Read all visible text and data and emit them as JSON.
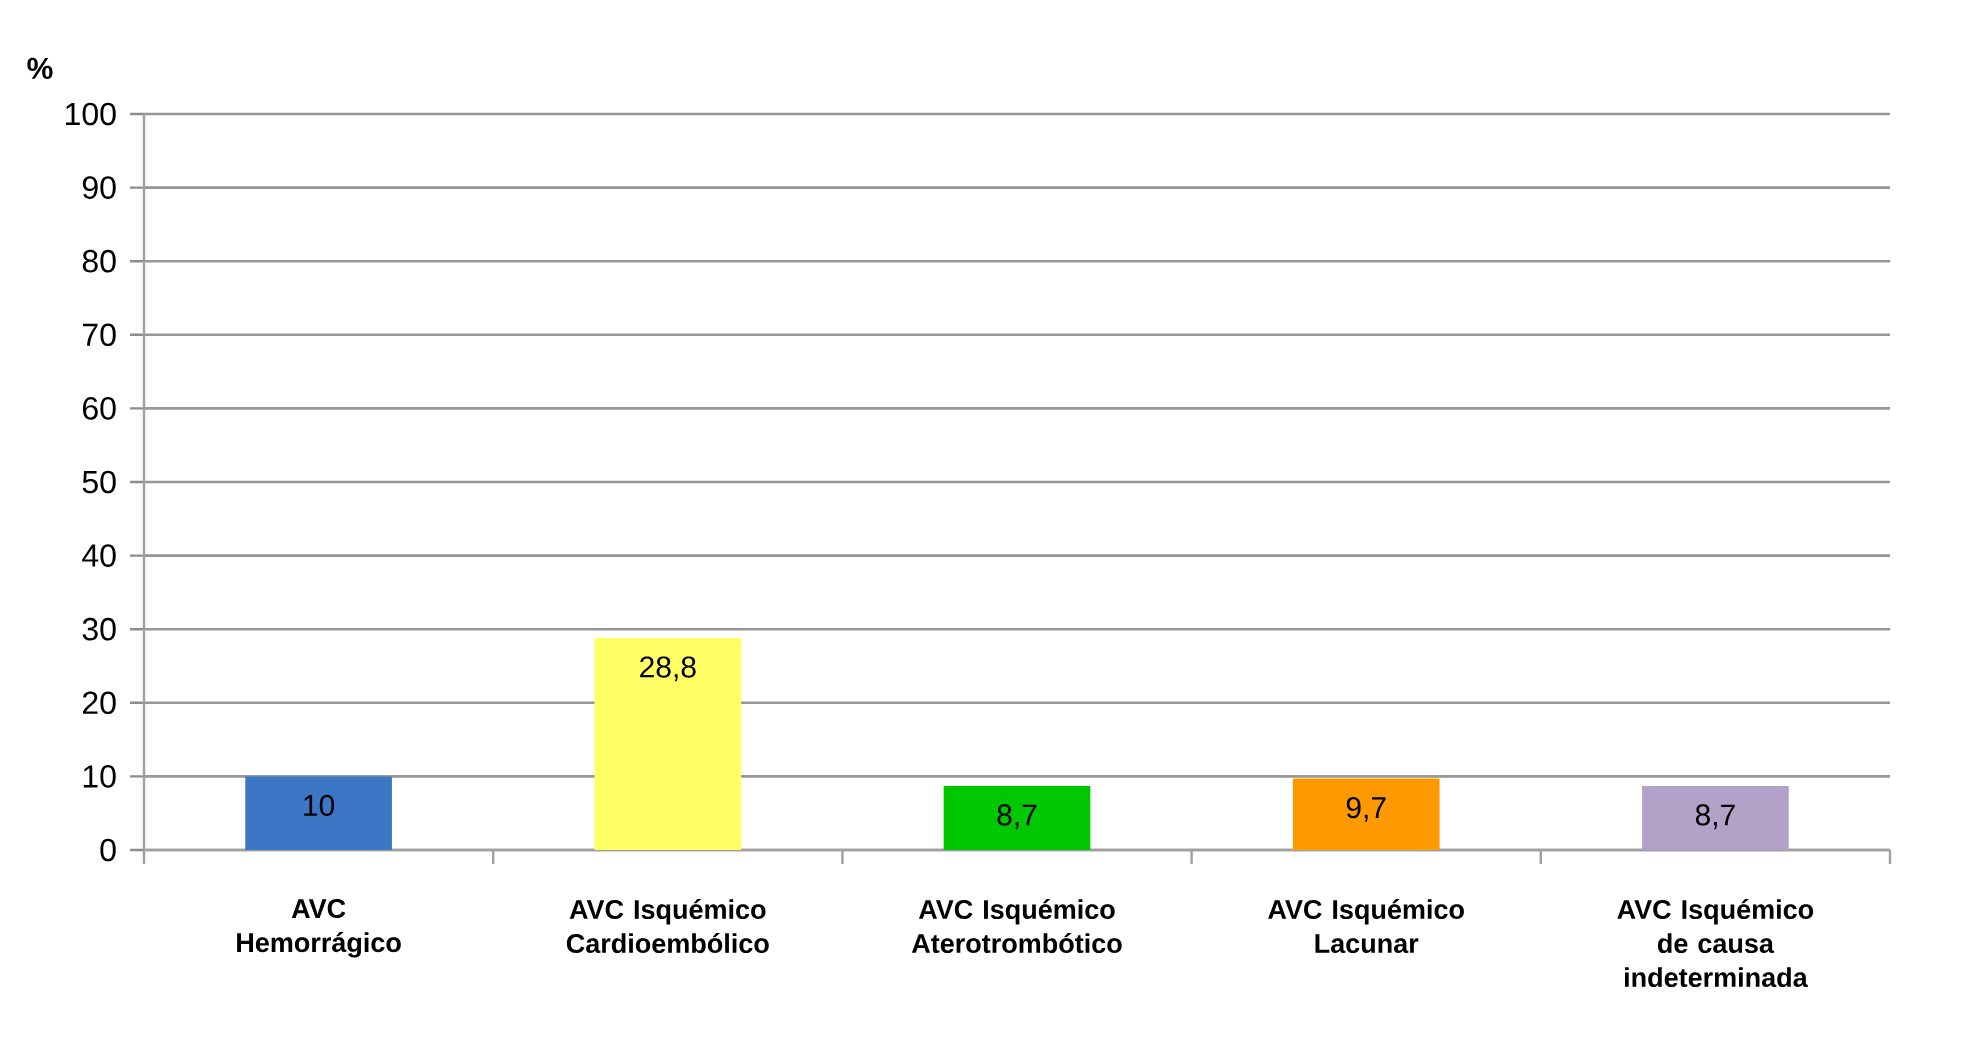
{
  "chart_data": {
    "type": "bar",
    "ylabel": "%",
    "categories": [
      "AVC Hemorrágico",
      "AVC Isquémico Cardioembólico",
      "AVC Isquémico Aterotrombótico",
      "AVC Isquémico Lacunar",
      "AVC Isquémico de causa indeterminada"
    ],
    "values": [
      10,
      28.8,
      8.7,
      9.7,
      8.7
    ],
    "colors": [
      "#3b77c4",
      "#ffff66",
      "#00c800",
      "#ff9900",
      "#b3a2c7"
    ],
    "value_labels": [
      "10",
      "28,8",
      "8,7",
      "9,7",
      "8,7"
    ],
    "ylim": [
      0,
      100
    ],
    "yticks": [
      0,
      10,
      20,
      30,
      40,
      50,
      60,
      70,
      80,
      90,
      100
    ],
    "grid": "y"
  }
}
